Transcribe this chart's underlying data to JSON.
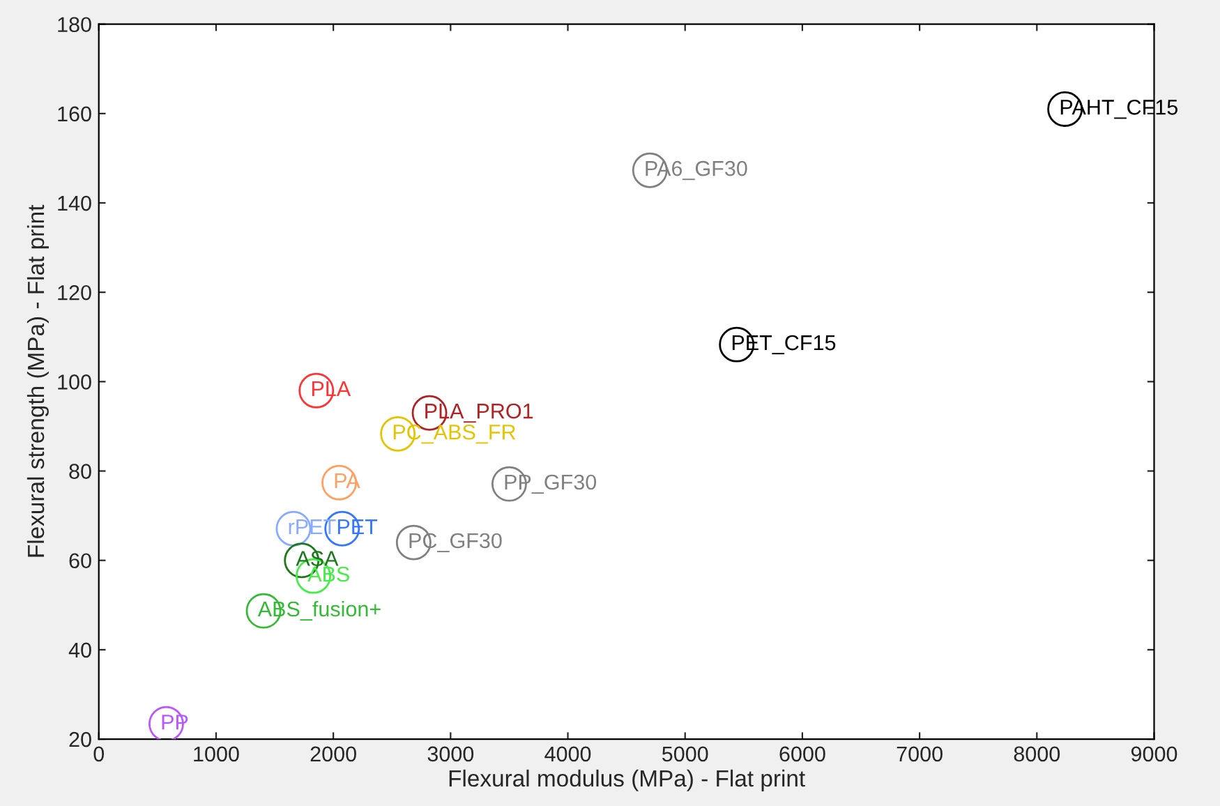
{
  "chart_data": {
    "type": "scatter",
    "xlabel": "Flexural modulus (MPa) - Flat print",
    "ylabel": "Flexural strength (MPa) - Flat print",
    "xlim": [
      0,
      9000
    ],
    "ylim": [
      20,
      180
    ],
    "xticks": [
      0,
      1000,
      2000,
      3000,
      4000,
      5000,
      6000,
      7000,
      8000,
      9000
    ],
    "yticks": [
      20,
      40,
      60,
      80,
      100,
      120,
      140,
      160,
      180
    ],
    "marker": "circle",
    "grid": false,
    "series": [
      {
        "name": "PAHT_CF15",
        "color": "#000000",
        "x": [
          8240
        ],
        "values": [
          161
        ]
      },
      {
        "name": "PA6_GF30",
        "color": "#808080",
        "x": [
          4700
        ],
        "values": [
          147.3
        ]
      },
      {
        "name": "PET_CF15",
        "color": "#000000",
        "x": [
          5440
        ],
        "values": [
          108.3
        ]
      },
      {
        "name": "PLA",
        "color": "#ff3333",
        "x": [
          1855
        ],
        "values": [
          98
        ]
      },
      {
        "name": "PLA_PRO1",
        "color": "#b22222",
        "x": [
          2820
        ],
        "values": [
          93
        ]
      },
      {
        "name": "PC_ABS_FR",
        "color": "#e6c300",
        "x": [
          2550
        ],
        "values": [
          88.3
        ]
      },
      {
        "name": "PA",
        "color": "#ffa060",
        "x": [
          2050
        ],
        "values": [
          77.4
        ]
      },
      {
        "name": "PP_GF30",
        "color": "#808080",
        "x": [
          3500
        ],
        "values": [
          77.1
        ]
      },
      {
        "name": "rPET",
        "color": "#88aaff",
        "x": [
          1660
        ],
        "values": [
          67.1
        ]
      },
      {
        "name": "PET",
        "color": "#3377ff",
        "x": [
          2075
        ],
        "values": [
          67.1
        ]
      },
      {
        "name": "PC_GF30",
        "color": "#808080",
        "x": [
          2685
        ],
        "values": [
          64
        ]
      },
      {
        "name": "ASA",
        "color": "#1a7a1a",
        "x": [
          1730
        ],
        "values": [
          60
        ]
      },
      {
        "name": "ABS",
        "color": "#44ee44",
        "x": [
          1830
        ],
        "values": [
          56.5
        ]
      },
      {
        "name": "ABS_fusion+",
        "color": "#33bb33",
        "x": [
          1405
        ],
        "values": [
          48.7
        ]
      },
      {
        "name": "PP",
        "color": "#bb55ff",
        "x": [
          575
        ],
        "values": [
          23.4
        ]
      }
    ]
  }
}
